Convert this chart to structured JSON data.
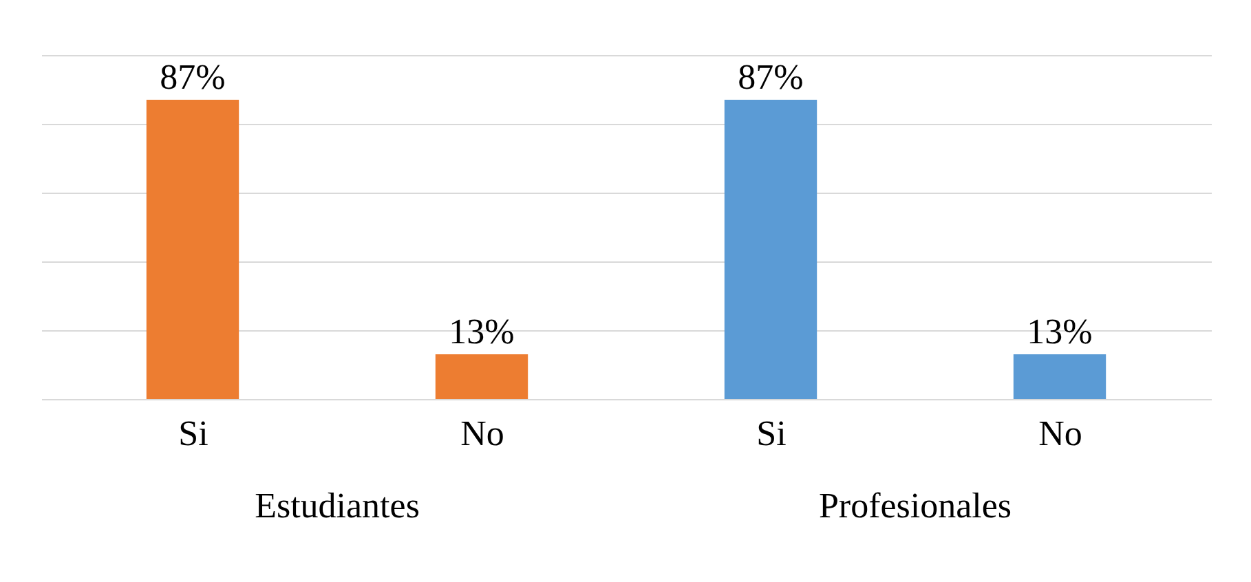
{
  "chart_data": {
    "type": "bar",
    "categories": [
      "Si",
      "No",
      "Si",
      "No"
    ],
    "series": [
      {
        "name": "Estudiantes",
        "color": "#ed7d31",
        "values": [
          87,
          13,
          null,
          null
        ],
        "value_labels": [
          "87%",
          "13%",
          null,
          null
        ]
      },
      {
        "name": "Profesionales",
        "color": "#5b9bd5",
        "values": [
          null,
          null,
          87,
          13
        ],
        "value_labels": [
          null,
          null,
          "87%",
          "13%"
        ]
      }
    ],
    "grid": "y",
    "tick_labels": "x"
  }
}
